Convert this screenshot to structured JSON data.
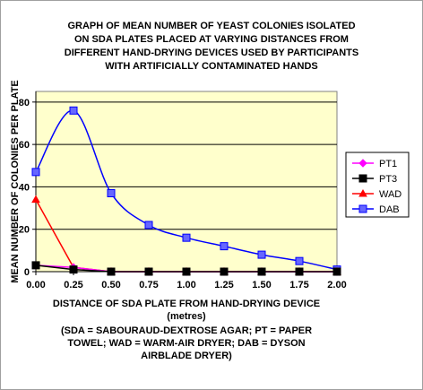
{
  "chart_data": {
    "type": "line",
    "title_lines": [
      "GRAPH OF MEAN NUMBER OF YEAST COLONIES ISOLATED",
      "ON SDA PLATES PLACED AT VARYING DISTANCES FROM",
      "DIFFERENT HAND-DRYING DEVICES USED BY PARTICIPANTS",
      "WITH ARTIFICIALLY CONTAMINATED HANDS"
    ],
    "xlabel_lines": [
      "DISTANCE OF SDA PLATE FROM HAND-DRYING DEVICE",
      "(metres)"
    ],
    "ylabel": "MEAN NUMBER OF COLONIES PER PLATE",
    "caption_lines": [
      "(SDA = SABOURAUD-DEXTROSE AGAR; PT = PAPER",
      "TOWEL; WAD = WARM-AIR DRYER; DAB = DYSON",
      "AIRBLADE DRYER)"
    ],
    "x": [
      0.0,
      0.25,
      0.5,
      0.75,
      1.0,
      1.25,
      1.5,
      1.75,
      2.0
    ],
    "x_tick_labels": [
      "0.00",
      "0.25",
      "0.50",
      "0.75",
      "1.00",
      "1.25",
      "1.50",
      "1.75",
      "2.00"
    ],
    "xlim": [
      0,
      2
    ],
    "ylim": [
      0,
      85
    ],
    "y_ticks": [
      0,
      20,
      40,
      60,
      80
    ],
    "y_tick_labels": [
      "0",
      "20",
      "40",
      "60",
      "80"
    ],
    "grid": "horizontal",
    "legend_position": "right",
    "plot_background": "#ffffcc",
    "series": [
      {
        "name": "PT1",
        "color": "#ff00ff",
        "marker": "diamond",
        "values": [
          3,
          2,
          0,
          0,
          0,
          0,
          0,
          0,
          0
        ]
      },
      {
        "name": "PT3",
        "color": "#000000",
        "marker": "square",
        "values": [
          3,
          1,
          0,
          0,
          0,
          0,
          0,
          0,
          0
        ]
      },
      {
        "name": "WAD",
        "color": "#ff0000",
        "marker": "triangle",
        "values": [
          34,
          2,
          0,
          0,
          0,
          0,
          0,
          0,
          0
        ]
      },
      {
        "name": "DAB",
        "color": "#0000ff",
        "marker": "square",
        "marker_fill": "#6666ff",
        "values": [
          47,
          76,
          37,
          22,
          16,
          12,
          8,
          5,
          1
        ]
      }
    ]
  }
}
